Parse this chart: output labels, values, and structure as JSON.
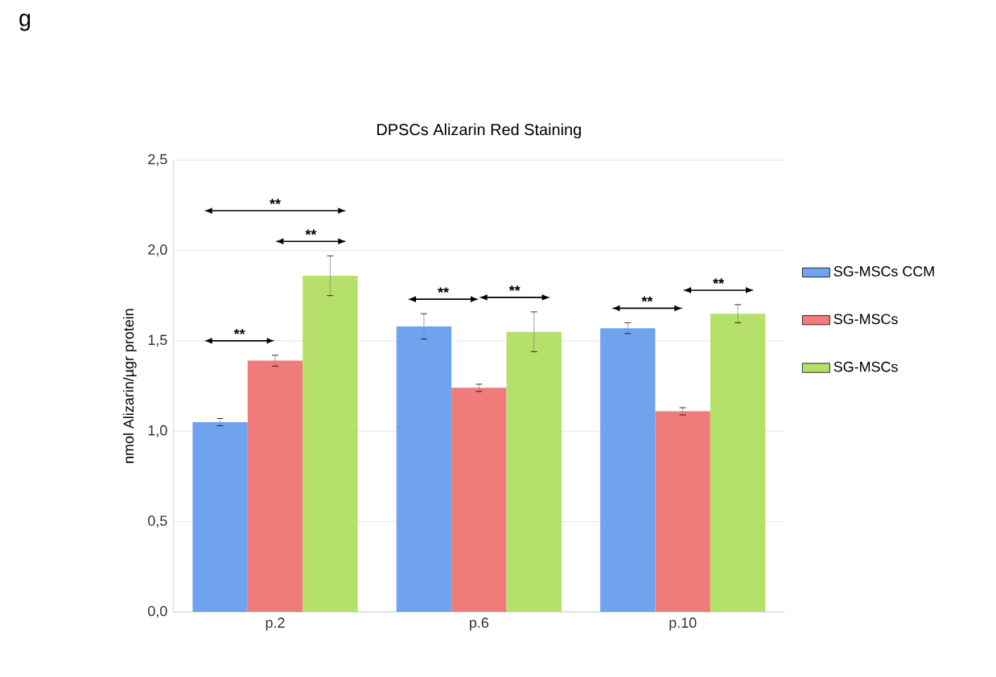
{
  "chart_data": {
    "type": "bar",
    "title": "DPSCs Alizarin Red Staining",
    "ylabel": "nmol Alizarin/µgr protein",
    "categories": [
      "p.2",
      "p.6",
      "p.10"
    ],
    "series": [
      {
        "name": "SG-MSCs CCM",
        "color": "#6fa3ee",
        "values": [
          1.05,
          1.58,
          1.57
        ],
        "errors": [
          0.02,
          0.07,
          0.03
        ]
      },
      {
        "name": "SG-MSCs",
        "color": "#ef7b7b",
        "values": [
          1.39,
          1.24,
          1.11
        ],
        "errors": [
          0.03,
          0.02,
          0.02
        ]
      },
      {
        "name": "SG-MSCs",
        "color": "#b5e06a",
        "values": [
          1.86,
          1.55,
          1.65
        ],
        "errors": [
          0.11,
          0.11,
          0.05
        ]
      }
    ],
    "ylim": [
      0,
      2.5
    ],
    "yticks": [
      {
        "value": 0,
        "label": "0,0"
      },
      {
        "value": 0.5,
        "label": "0,5"
      },
      {
        "value": 1,
        "label": "1,0"
      },
      {
        "value": 1.5,
        "label": "1,5"
      },
      {
        "value": 2,
        "label": "2,0"
      },
      {
        "value": 2.5,
        "label": "2,5"
      }
    ],
    "grid": "y",
    "legend": "right",
    "annotations": [
      "g",
      "**",
      "**",
      "**",
      "**",
      "**",
      "**",
      "**"
    ]
  }
}
